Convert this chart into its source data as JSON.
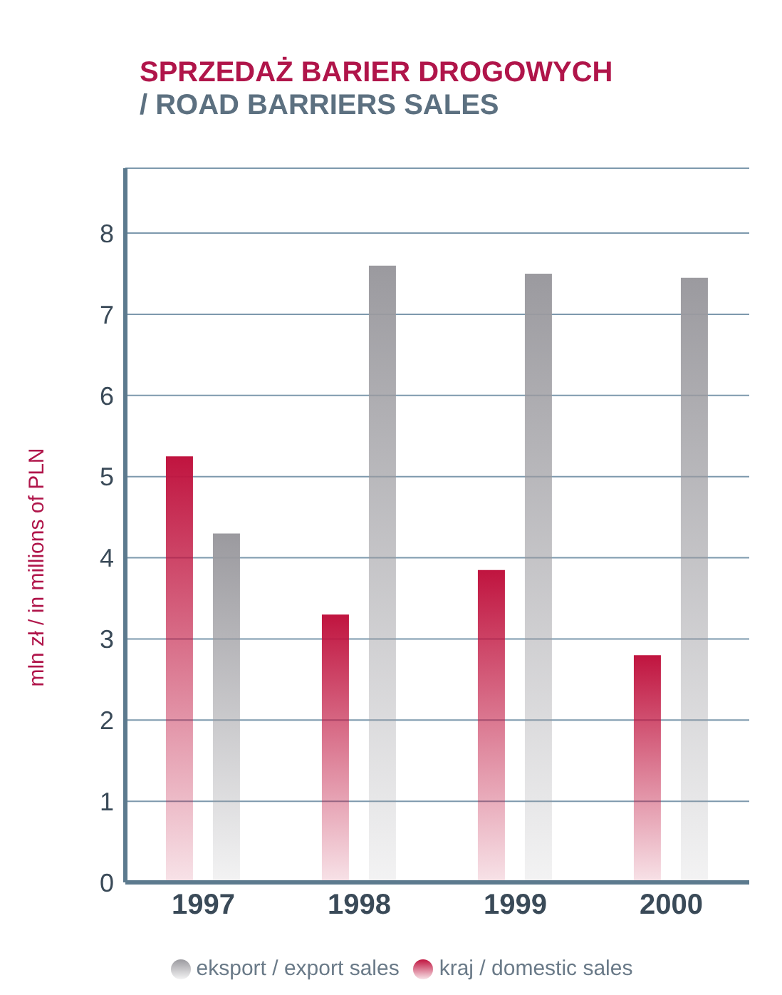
{
  "chart_data": {
    "type": "bar",
    "title": "SPRZEDAŻ BARIER DROGOWYCH",
    "subtitle": "/ ROAD BARRIERS SALES",
    "ylabel": "mln zł / in millions of PLN",
    "categories": [
      "1997",
      "1998",
      "1999",
      "2000"
    ],
    "series": [
      {
        "name": "kraj / domestic sales",
        "color": "#c0143f",
        "values": [
          5.25,
          3.3,
          3.85,
          2.8
        ]
      },
      {
        "name": "eksport / export sales",
        "color": "#9b9a9f",
        "values": [
          4.3,
          7.6,
          7.5,
          7.45
        ]
      }
    ],
    "ylim": [
      0,
      8.8
    ],
    "yticks": [
      0,
      1,
      2,
      3,
      4,
      5,
      6,
      7,
      8
    ],
    "grid": "y",
    "legend": "bottom"
  }
}
